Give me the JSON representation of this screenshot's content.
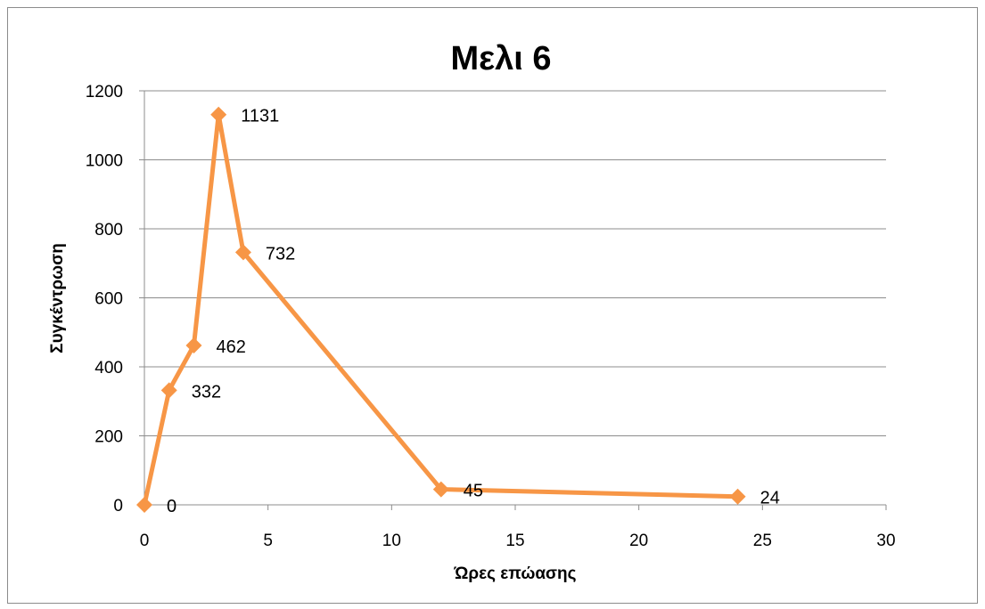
{
  "chart_data": {
    "type": "scatter",
    "title": "Μελι 6",
    "xlabel": "Ώρες επώασης",
    "ylabel": "Συγκέντρωση",
    "xlim": [
      0,
      30
    ],
    "ylim": [
      0,
      1200
    ],
    "x_ticks": [
      0,
      5,
      10,
      15,
      20,
      25,
      30
    ],
    "y_ticks": [
      0,
      200,
      400,
      600,
      800,
      1000,
      1200
    ],
    "grid": "horizontal",
    "legend": "none",
    "series": [
      {
        "x": [
          0,
          1,
          2,
          3,
          4,
          12,
          24
        ],
        "y": [
          0,
          332,
          462,
          1131,
          732,
          45,
          24
        ],
        "labels": [
          "0",
          "332",
          "462",
          "1131",
          "732",
          "45",
          "24"
        ],
        "marker": "diamond",
        "color": "#F79646"
      }
    ]
  }
}
